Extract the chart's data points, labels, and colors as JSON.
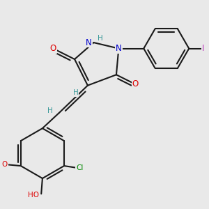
{
  "bg_color": "#e9e9e9",
  "bond_color": "#1a1a1a",
  "bond_lw": 1.5,
  "dbo": 0.12,
  "atom_colors": {
    "O": "#dd0000",
    "N": "#0000cc",
    "H": "#3a9999",
    "Cl": "#008800",
    "I": "#bb33bb",
    "default": "#1a1a1a"
  },
  "font_size": 8.5
}
